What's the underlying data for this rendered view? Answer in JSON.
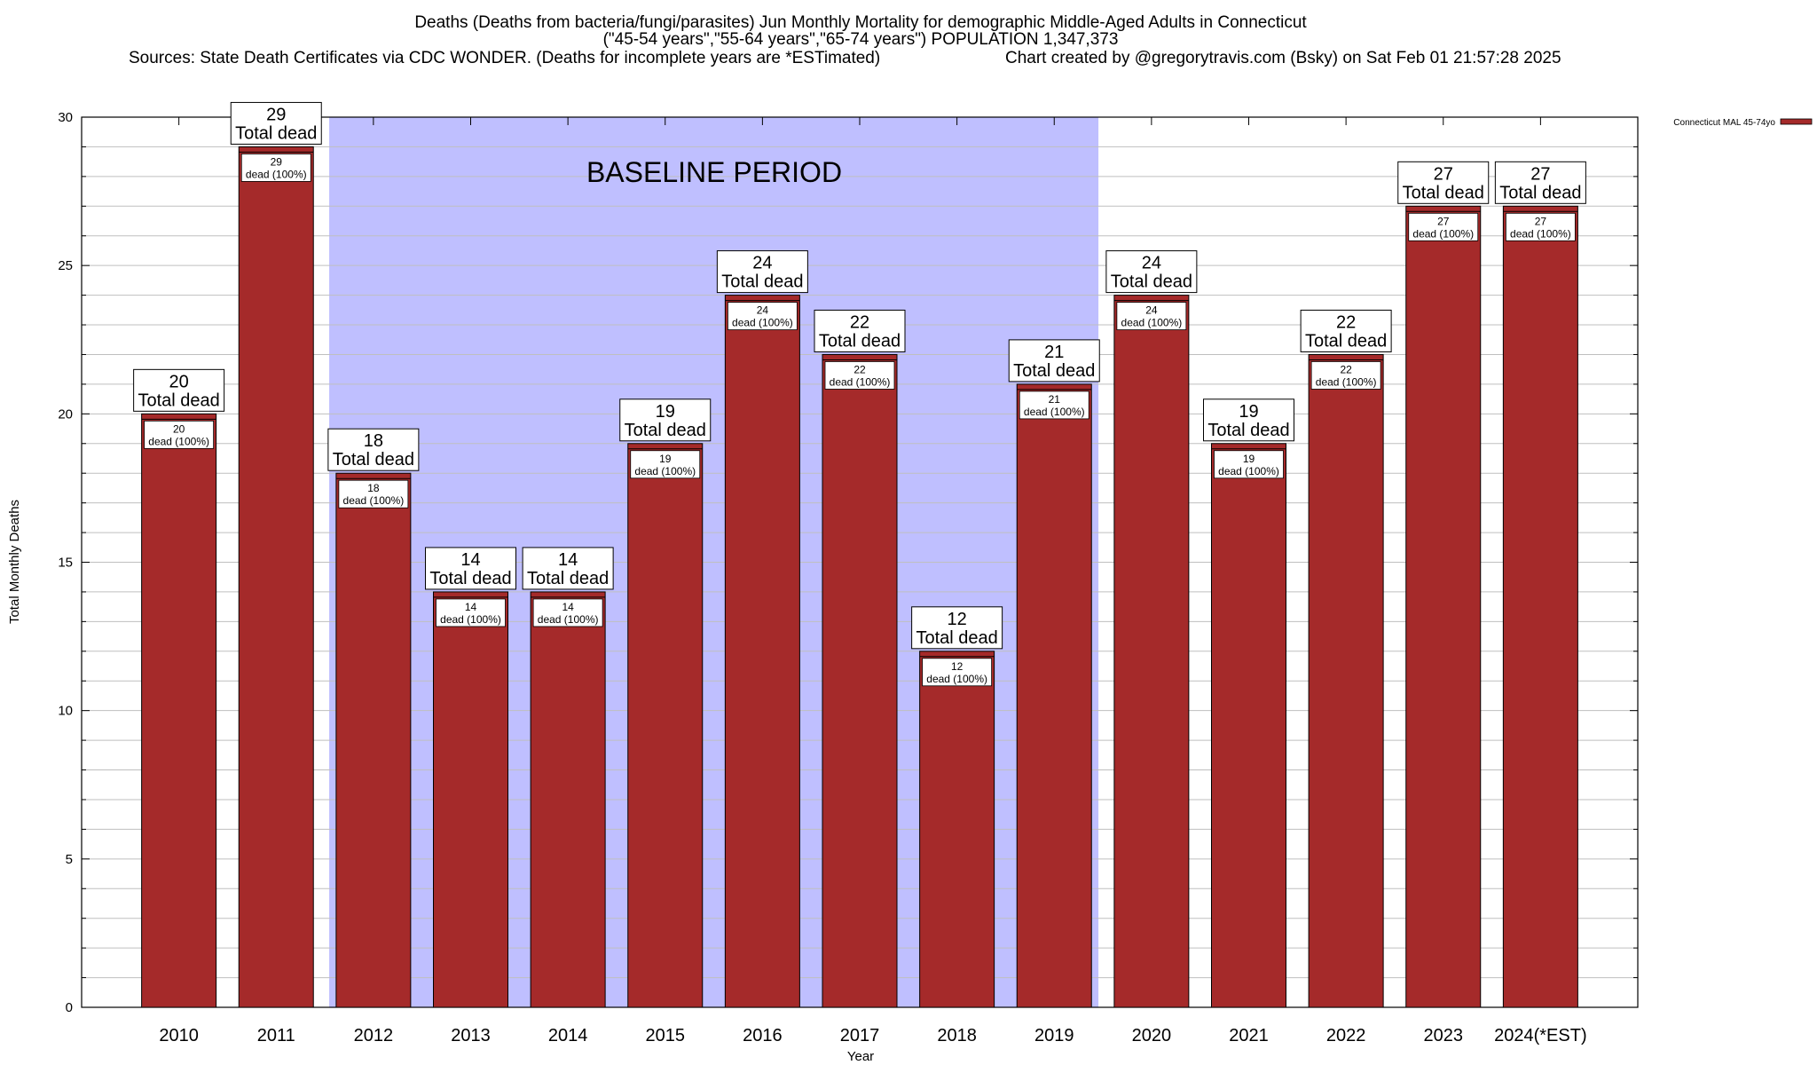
{
  "chart_data": {
    "type": "bar",
    "title_lines": [
      "Deaths (Deaths from bacteria/fungi/parasites) Jun Monthly Mortality for demographic Middle-Aged Adults in Connecticut",
      "(\"45-54 years\",\"55-64 years\",\"65-74 years\") POPULATION 1,347,373",
      "Sources: State Death Certificates via CDC WONDER. (Deaths for incomplete years are *ESTimated)",
      "Chart created by @gregorytravis.com (Bsky) on Sat Feb 01 21:57:28 2025"
    ],
    "xlabel": "Year",
    "ylabel": "Total Monthly Deaths",
    "ylim": [
      0,
      30
    ],
    "yticks": [
      "0",
      "5",
      "10",
      "15",
      "20",
      "25",
      "30"
    ],
    "grid": true,
    "legend_placement": "top-right",
    "categories": [
      "2010",
      "2011",
      "2012",
      "2013",
      "2014",
      "2015",
      "2016",
      "2017",
      "2018",
      "2019",
      "2020",
      "2021",
      "2022",
      "2023",
      "2024(*EST)"
    ],
    "series": [
      {
        "name": "Connecticut MAL 45-74yo",
        "color": "#a52a2a",
        "values": [
          20,
          29,
          18,
          14,
          14,
          19,
          24,
          22,
          12,
          21,
          24,
          19,
          22,
          27,
          27
        ]
      }
    ],
    "total_labels": [
      "20",
      "29",
      "18",
      "14",
      "14",
      "19",
      "24",
      "22",
      "12",
      "21",
      "24",
      "19",
      "22",
      "27",
      "27"
    ],
    "total_caption": "Total dead",
    "inner_labels": [
      "20",
      "29",
      "18",
      "14",
      "14",
      "19",
      "24",
      "22",
      "12",
      "21",
      "24",
      "19",
      "22",
      "27",
      "27"
    ],
    "inner_caption": "dead (100%)",
    "baseline": {
      "label": "BASELINE PERIOD",
      "start_category": "2012",
      "end_category": "2019",
      "color": "#bfbfff"
    }
  }
}
